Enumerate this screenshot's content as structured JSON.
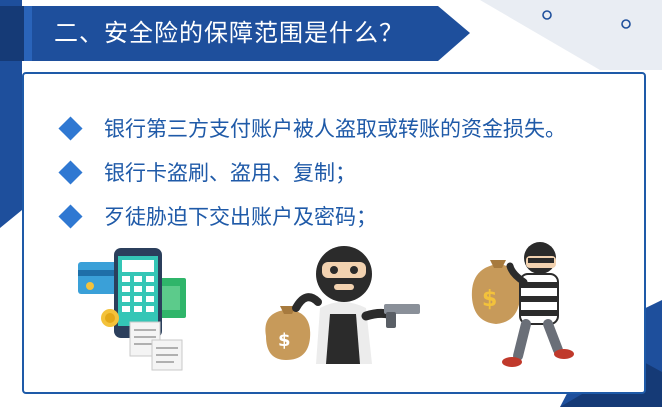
{
  "title": "二、安全险的保障范围是什么？",
  "items": [
    "银行第三方支付账户被人盗取或转账的资金损失。",
    "银行卡盗刷、盗用、复制；",
    "歹徒胁迫下交出账户及密码；"
  ],
  "colors": {
    "title_band": "#1e4f9c",
    "title_band_dark": "#153a76",
    "accent_blue": "#2f78d2",
    "text_blue": "#1f5aa8",
    "border_blue": "#1e5aa8",
    "decor_gray": "#e9edf3"
  },
  "illustrations": [
    "phone-payment-icon",
    "masked-robber-with-gun-icon",
    "thief-carrying-money-bag-icon"
  ]
}
